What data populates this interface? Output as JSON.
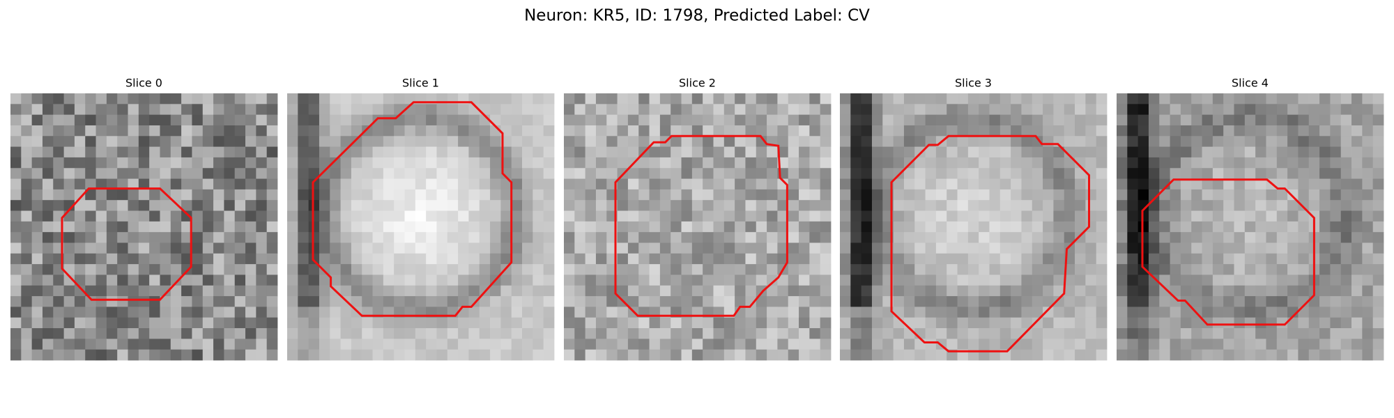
{
  "header": {
    "title": "Neuron: KR5, ID: 1798, Predicted Label: CV"
  },
  "slices": [
    {
      "title": "Slice 0"
    },
    {
      "title": "Slice 1"
    },
    {
      "title": "Slice 2"
    },
    {
      "title": "Slice 3"
    },
    {
      "title": "Slice 4"
    }
  ]
}
